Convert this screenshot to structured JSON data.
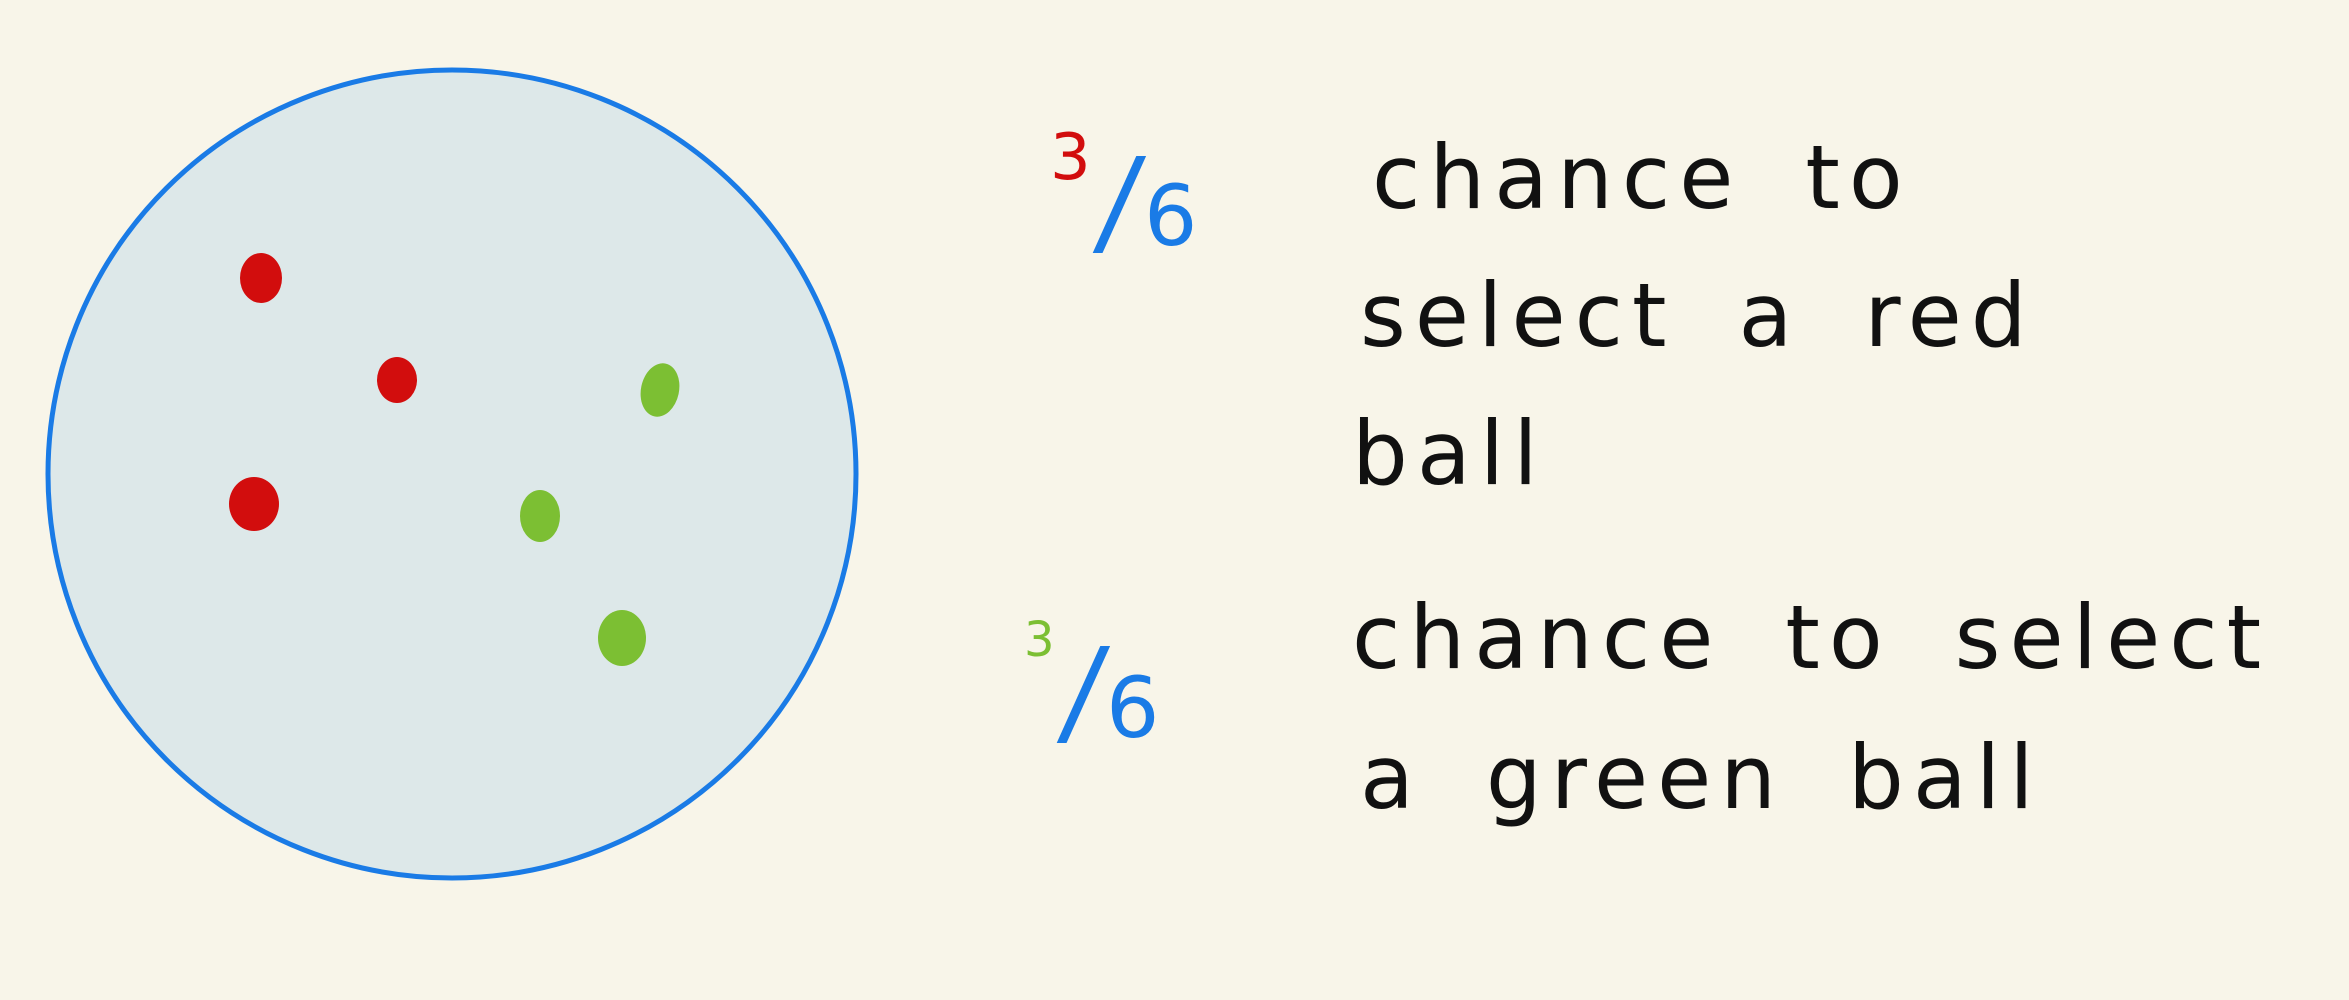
{
  "colors": {
    "background": "#f8f5e9",
    "circle_fill": "#dde8e9",
    "circle_stroke": "#1a7be6",
    "red_ball": "#d20d0d",
    "green_ball": "#7cbf33",
    "ink": "#111111",
    "denominator": "#1a7be6"
  },
  "bag": {
    "red_ball_count": 3,
    "green_ball_count": 3
  },
  "red_statement": {
    "numerator": "3",
    "slash": "/",
    "denominator": "6",
    "line1": "chance to",
    "line2": "select a red",
    "line3": "ball"
  },
  "green_statement": {
    "numerator": "3",
    "slash": "/",
    "denominator": "6",
    "line1": "chance to select",
    "line2": "a green ball"
  }
}
